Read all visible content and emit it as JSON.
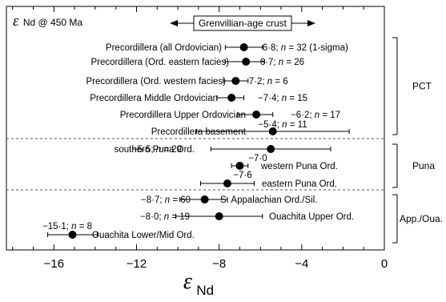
{
  "chart_data": {
    "type": "scatter",
    "title_prefix": "ε",
    "title_sub": "Nd @ 450 Ma",
    "banner": "Grenvillian-age crust",
    "xlabel_main": "ε",
    "xlabel_sub": "Nd",
    "xlim": [
      -18.3,
      0
    ],
    "xticks": [
      -16,
      -12,
      -8,
      -4,
      0
    ],
    "xtick_labels": [
      "−16",
      "−12",
      "−8",
      "−4",
      "0"
    ],
    "grid": false,
    "points": [
      {
        "label": "Precordillera (all Ordovician)",
        "value": -6.8,
        "lo": -7.7,
        "hi": -5.9,
        "annotation": "−6·8; n = 32 (1-sigma)"
      },
      {
        "label": "Precordillera (Ord. eastern facies)",
        "value": -6.7,
        "lo": -7.7,
        "hi": -5.8,
        "annotation": "−6·7; n = 26"
      },
      {
        "label": "Precordillera (Ord. western facies)",
        "value": -7.2,
        "lo": -7.8,
        "hi": -6.6,
        "annotation": "−7·2; n = 6"
      },
      {
        "label": "Precordillera Middle Ordovician",
        "value": -7.4,
        "lo": -8.1,
        "hi": -6.8,
        "annotation": "−7·4; n = 15"
      },
      {
        "label": "Precordillera Upper Ordovician",
        "value": -6.2,
        "lo": -7.1,
        "hi": -5.4,
        "annotation": "−6·2; n = 17"
      },
      {
        "label": "Precordillera basement",
        "value": -5.4,
        "lo": -9.1,
        "hi": -1.7,
        "annotation": "−5·4; n = 11"
      },
      {
        "label": "southern Puna Ord.",
        "value": -5.5,
        "lo": -8.4,
        "hi": -2.6,
        "annotation": "−5·5; n = 29"
      },
      {
        "label": "western Puna Ord.",
        "value": -7.0,
        "lo": -7.4,
        "hi": -6.6,
        "annotation": "−7·0"
      },
      {
        "label": "eastern Puna Ord.",
        "value": -7.6,
        "lo": -8.9,
        "hi": -6.3,
        "annotation": "−7·6"
      },
      {
        "label": "S. Appalachian Ord./Sil.",
        "value": -8.7,
        "lo": -9.9,
        "hi": -7.6,
        "annotation": "−8·7; n = 60"
      },
      {
        "label": "Ouachita Upper Ord.",
        "value": -8.0,
        "lo": -10.1,
        "hi": -5.9,
        "annotation": "−8·0; n = 19"
      },
      {
        "label": "Ouachita Lower/Mid Ord.",
        "value": -15.1,
        "lo": -16.3,
        "hi": -13.9,
        "annotation": "−15·1; n = 8"
      }
    ],
    "groups": [
      {
        "name": "PCT",
        "first": 0,
        "last": 5
      },
      {
        "name": "Puna",
        "first": 6,
        "last": 8
      },
      {
        "name": "App./Oua.",
        "first": 9,
        "last": 11
      }
    ]
  }
}
